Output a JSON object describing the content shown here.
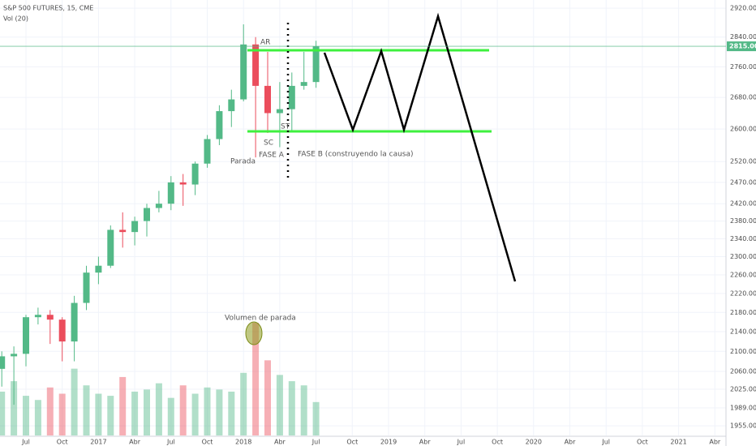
{
  "chart_data": {
    "type": "candlestick",
    "title": "S&P 500 FUTURES, 15, CME",
    "subtitle": "Vol (20)",
    "categories": [
      null,
      null,
      "Jul",
      null,
      null,
      "Oct",
      null,
      null,
      "2017",
      null,
      null,
      "Abr",
      null,
      null,
      "Jul",
      null,
      null,
      "Oct",
      null,
      null,
      "2018",
      null,
      null,
      "Abr",
      null,
      null,
      "Jul",
      null,
      null,
      "Oct",
      null,
      null,
      "2019",
      null,
      null,
      "Abr",
      null,
      null,
      "Jul",
      null,
      null,
      "Oct",
      null,
      null,
      "2020",
      null,
      null,
      "Abr",
      null,
      null,
      "Jul",
      null,
      null,
      "Oct",
      null,
      null,
      "2021",
      null,
      null,
      "Abr"
    ],
    "open": [
      2065,
      2090,
      2095,
      2170,
      2175,
      2165,
      2120,
      2200,
      2265,
      2280,
      2360,
      2355,
      2380,
      2410,
      2420,
      2470,
      2465,
      2515,
      2575,
      2645,
      2675,
      2820,
      2710,
      2640,
      2650,
      2710,
      2720,
      null,
      null,
      null,
      null,
      null,
      null,
      null,
      null,
      null,
      null,
      null,
      null,
      null,
      null,
      null,
      null,
      null,
      null,
      null,
      null,
      null,
      null,
      null,
      null,
      null,
      null,
      null,
      null,
      null,
      null,
      null,
      null,
      null
    ],
    "high": [
      2100,
      2110,
      2175,
      2190,
      2185,
      2170,
      2215,
      2280,
      2300,
      2370,
      2400,
      2390,
      2420,
      2450,
      2485,
      2490,
      2520,
      2585,
      2660,
      2700,
      2875,
      2840,
      2800,
      2720,
      2745,
      2800,
      2830,
      null,
      null,
      null,
      null,
      null,
      null,
      null,
      null,
      null,
      null,
      null,
      null,
      null,
      null,
      null,
      null,
      null,
      null,
      null,
      null,
      null,
      null,
      null,
      null,
      null,
      null,
      null,
      null,
      null,
      null,
      null,
      null,
      null
    ],
    "low": [
      2030,
      1995,
      2070,
      2155,
      2115,
      2080,
      2080,
      2185,
      2240,
      2275,
      2320,
      2325,
      2345,
      2400,
      2405,
      2415,
      2440,
      2505,
      2560,
      2605,
      2670,
      2530,
      2590,
      2555,
      2595,
      2700,
      2705,
      null,
      null,
      null,
      null,
      null,
      null,
      null,
      null,
      null,
      null,
      null,
      null,
      null,
      null,
      null,
      null,
      null,
      null,
      null,
      null,
      null,
      null,
      null,
      null,
      null,
      null,
      null,
      null,
      null,
      null,
      null,
      null,
      null
    ],
    "close": [
      2090,
      2095,
      2170,
      2175,
      2165,
      2120,
      2200,
      2265,
      2280,
      2360,
      2355,
      2380,
      2410,
      2420,
      2470,
      2465,
      2515,
      2575,
      2645,
      2675,
      2820,
      2710,
      2640,
      2650,
      2710,
      2720,
      2815,
      null,
      null,
      null,
      null,
      null,
      null,
      null,
      null,
      null,
      null,
      null,
      null,
      null,
      null,
      null,
      null,
      null,
      null,
      null,
      null,
      null,
      null,
      null,
      null,
      null,
      null,
      null,
      null,
      null,
      null,
      null,
      null,
      null
    ],
    "volume": [
      2.1,
      2.6,
      1.9,
      1.7,
      2.3,
      2.0,
      3.2,
      2.4,
      2.0,
      1.9,
      2.8,
      2.1,
      2.2,
      2.5,
      1.8,
      2.4,
      2.0,
      2.3,
      2.2,
      2.1,
      3.0,
      5.4,
      3.6,
      2.9,
      2.6,
      2.4,
      1.6,
      null,
      null,
      null,
      null,
      null,
      null,
      null,
      null,
      null,
      null,
      null,
      null,
      null,
      null,
      null,
      null,
      null,
      null,
      null,
      null,
      null,
      null,
      null,
      null,
      null,
      null,
      null,
      null,
      null,
      null,
      null,
      null,
      null
    ],
    "up_color": "#53b987",
    "down_color": "#eb4d5c",
    "log_scale": true,
    "grid": true,
    "ylim": [
      1937,
      2943
    ],
    "yticks": [
      {
        "value": 1955,
        "label": "1955.00"
      },
      {
        "value": 1989,
        "label": "1989.00"
      },
      {
        "value": 2025,
        "label": "2025.00"
      },
      {
        "value": 2060,
        "label": "2060.00"
      },
      {
        "value": 2100,
        "label": "2100.00"
      },
      {
        "value": 2140,
        "label": "2140.00"
      },
      {
        "value": 2180,
        "label": "2180.00"
      },
      {
        "value": 2220,
        "label": "2220.00"
      },
      {
        "value": 2260,
        "label": "2260.00"
      },
      {
        "value": 2300,
        "label": "2300.00"
      },
      {
        "value": 2340,
        "label": "2340.00"
      },
      {
        "value": 2380,
        "label": "2380.00"
      },
      {
        "value": 2420,
        "label": "2420.00"
      },
      {
        "value": 2470,
        "label": "2470.00"
      },
      {
        "value": 2520,
        "label": "2520.00"
      },
      {
        "value": 2600,
        "label": "2600.00"
      },
      {
        "value": 2680,
        "label": "2680.00"
      },
      {
        "value": 2760,
        "label": "2760.00"
      },
      {
        "value": 2840,
        "label": "2840.00"
      },
      {
        "value": 2920,
        "label": "2920.00"
      }
    ],
    "last_price": {
      "value": 2815,
      "label": "2815.00"
    },
    "annotations": [
      "AR",
      "SC",
      "FASE A",
      "Parada",
      "ST",
      "FASE B (construyendo la causa)",
      "Volumen de parada"
    ]
  }
}
